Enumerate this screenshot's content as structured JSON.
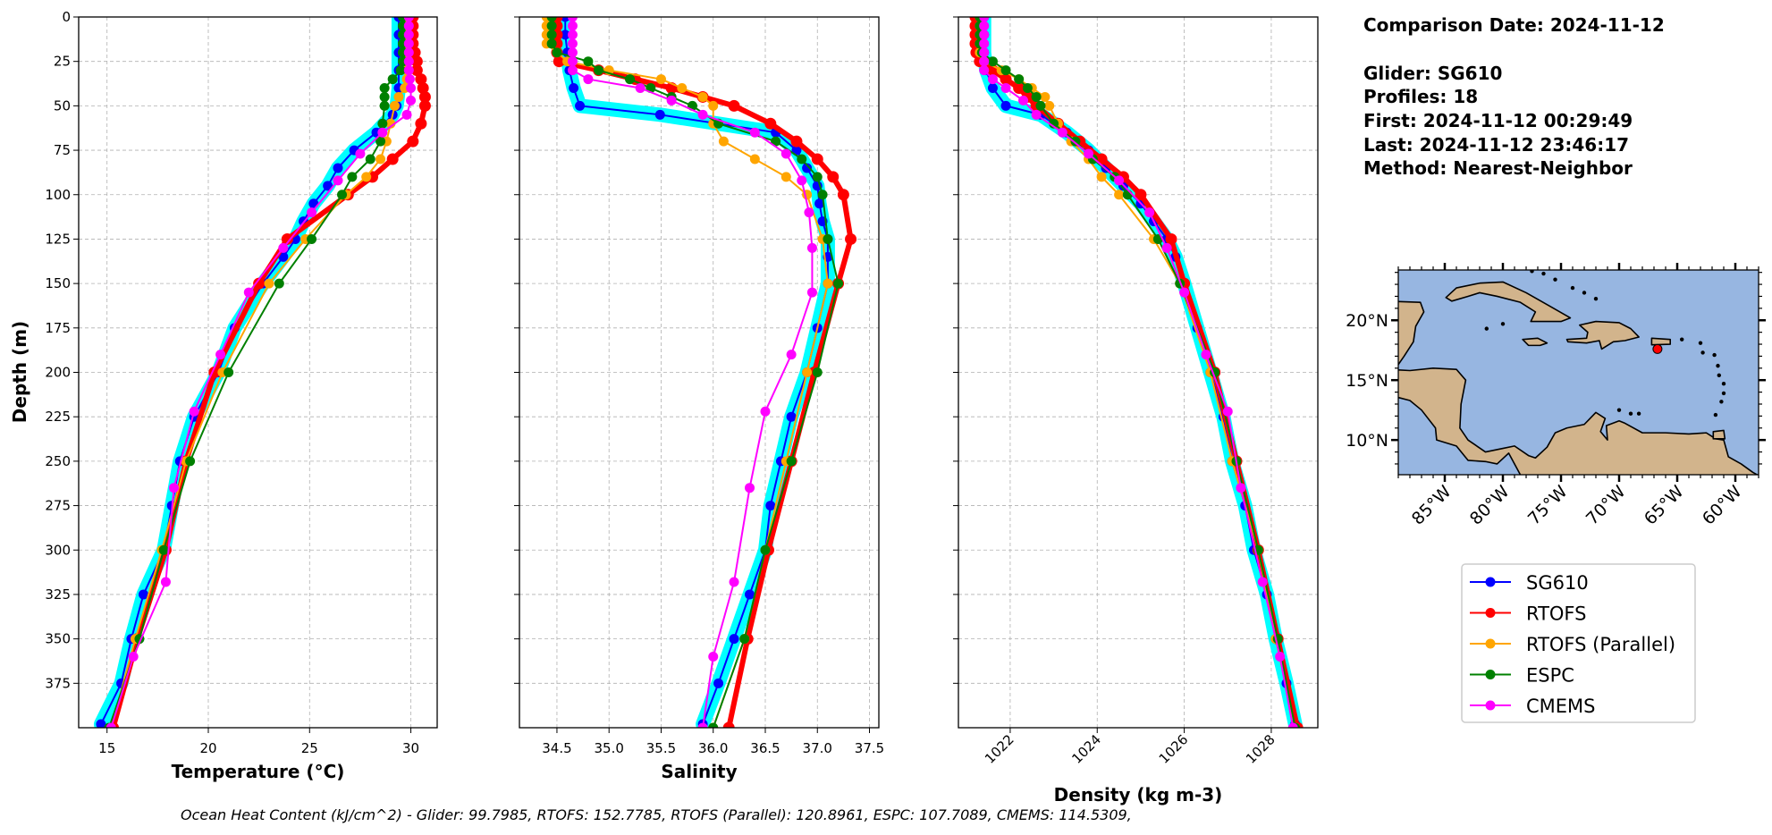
{
  "info_panel": {
    "comparison_date": "Comparison Date: 2024-11-12",
    "glider": "Glider: SG610",
    "profiles": "Profiles: 18",
    "first": "First: 2024-11-12 00:29:49",
    "last": "Last: 2024-11-12 23:46:17",
    "method": "Method: Nearest-Neighbor"
  },
  "caption": "Ocean Heat Content (kJ/cm^2) - Glider: 99.7985,  RTOFS: 152.7785,  RTOFS (Parallel): 120.8961,  ESPC: 107.7089,  CMEMS: 114.5309,",
  "glider_profiles_color": "#00ffff",
  "chart_data": {
    "type": "line",
    "ylabel": "Depth (m)",
    "ylim": [
      400,
      0
    ],
    "ytick_labels": [
      "0",
      "25",
      "50",
      "75",
      "100",
      "125",
      "150",
      "175",
      "200",
      "225",
      "250",
      "275",
      "300",
      "325",
      "350",
      "375"
    ],
    "grid": true,
    "legend_placement": "right",
    "panels": [
      {
        "variable": "temperature",
        "xlabel": "Temperature (°C)",
        "xlim": [
          13.6,
          31.3
        ],
        "xtick_labels": [
          "15",
          "20",
          "25",
          "30"
        ],
        "xtick_rotation": 0
      },
      {
        "variable": "salinity",
        "xlabel": "Salinity",
        "xlim": [
          34.14,
          37.59
        ],
        "xtick_labels": [
          "34.5",
          "35.0",
          "35.5",
          "36.0",
          "36.5",
          "37.0",
          "37.5"
        ],
        "xtick_rotation": 0
      },
      {
        "variable": "density",
        "xlabel": "Density (kg m-3)",
        "xlim": [
          1020.81,
          1029.07
        ],
        "xtick_labels": [
          "1022",
          "1024",
          "1026",
          "1028"
        ],
        "xtick_rotation": 45
      }
    ],
    "series": [
      {
        "name": "SG610",
        "color": "#0000ff",
        "depth": [
          0,
          10,
          20,
          30,
          40,
          50,
          55,
          65,
          75,
          85,
          95,
          105,
          115,
          125,
          135,
          150,
          175,
          200,
          225,
          250,
          275,
          300,
          325,
          350,
          375,
          398
        ],
        "temperature": [
          29.4,
          29.4,
          29.4,
          29.4,
          29.4,
          29.3,
          29.1,
          28.3,
          27.2,
          26.4,
          25.9,
          25.2,
          24.7,
          24.3,
          23.7,
          22.7,
          21.3,
          20.5,
          19.3,
          18.6,
          18.2,
          17.8,
          16.8,
          16.2,
          15.7,
          14.7
        ],
        "salinity": [
          34.58,
          34.58,
          34.6,
          34.62,
          34.66,
          34.72,
          35.49,
          36.6,
          36.8,
          36.9,
          37.0,
          37.02,
          37.05,
          37.1,
          37.1,
          37.1,
          37.0,
          36.9,
          36.75,
          36.65,
          36.55,
          36.5,
          36.35,
          36.2,
          36.05,
          35.9
        ],
        "density": [
          1021.4,
          1021.4,
          1021.4,
          1021.45,
          1021.6,
          1021.9,
          1022.7,
          1023.3,
          1023.8,
          1024.2,
          1024.6,
          1025.0,
          1025.3,
          1025.6,
          1025.8,
          1026.0,
          1026.3,
          1026.6,
          1026.9,
          1027.1,
          1027.4,
          1027.6,
          1027.9,
          1028.1,
          1028.35,
          1028.55
        ]
      },
      {
        "name": "RTOFS",
        "color": "#ff0000",
        "depth": [
          0,
          5,
          10,
          15,
          20,
          25,
          30,
          35,
          40,
          45,
          50,
          60,
          70,
          80,
          90,
          100,
          125,
          150,
          200,
          250,
          300,
          350,
          400
        ],
        "temperature": [
          30.1,
          30.1,
          30.1,
          30.1,
          30.2,
          30.3,
          30.3,
          30.5,
          30.6,
          30.7,
          30.7,
          30.5,
          30.1,
          29.1,
          28.1,
          26.9,
          23.9,
          22.5,
          20.3,
          18.9,
          17.9,
          16.5,
          15.3
        ],
        "salinity": [
          34.5,
          34.5,
          34.5,
          34.5,
          34.5,
          34.52,
          34.9,
          35.25,
          35.6,
          35.9,
          36.2,
          36.55,
          36.8,
          37.0,
          37.15,
          37.25,
          37.32,
          37.2,
          36.97,
          36.75,
          36.53,
          36.33,
          36.15
        ],
        "density": [
          1021.2,
          1021.2,
          1021.2,
          1021.2,
          1021.22,
          1021.3,
          1021.6,
          1021.9,
          1022.2,
          1022.4,
          1022.6,
          1023.1,
          1023.6,
          1024.1,
          1024.6,
          1025.0,
          1025.7,
          1026.0,
          1026.7,
          1027.2,
          1027.7,
          1028.15,
          1028.6
        ]
      },
      {
        "name": "RTOFS (Parallel)",
        "color": "#ffa500",
        "depth": [
          0,
          5,
          10,
          15,
          20,
          25,
          30,
          35,
          40,
          45,
          50,
          60,
          70,
          80,
          90,
          100,
          125,
          150,
          200,
          250,
          300,
          350,
          400
        ],
        "temperature": [
          29.8,
          29.8,
          29.8,
          29.8,
          29.8,
          29.8,
          29.8,
          29.8,
          29.7,
          29.4,
          29.2,
          29.0,
          28.8,
          28.5,
          27.8,
          26.8,
          24.8,
          23.0,
          20.7,
          18.9,
          17.7,
          16.4,
          15.2
        ],
        "salinity": [
          34.4,
          34.4,
          34.4,
          34.4,
          34.5,
          34.6,
          35.0,
          35.5,
          35.7,
          35.9,
          36.0,
          36.0,
          36.1,
          36.4,
          36.7,
          36.9,
          37.05,
          37.1,
          36.9,
          36.7,
          36.5,
          36.3,
          36.0
        ],
        "density": [
          1021.3,
          1021.3,
          1021.3,
          1021.3,
          1021.3,
          1021.4,
          1021.8,
          1022.2,
          1022.5,
          1022.8,
          1022.9,
          1023.1,
          1023.4,
          1023.8,
          1024.1,
          1024.5,
          1025.3,
          1025.9,
          1026.6,
          1027.1,
          1027.7,
          1028.1,
          1028.55
        ]
      },
      {
        "name": "ESPC",
        "color": "#008000",
        "depth": [
          0,
          5,
          10,
          15,
          20,
          25,
          30,
          35,
          40,
          45,
          50,
          60,
          70,
          80,
          90,
          100,
          125,
          150,
          200,
          250,
          300,
          350,
          400
        ],
        "temperature": [
          29.6,
          29.6,
          29.6,
          29.6,
          29.6,
          29.6,
          29.5,
          29.1,
          28.7,
          28.7,
          28.7,
          28.6,
          28.5,
          28.0,
          27.1,
          26.6,
          25.1,
          23.5,
          21.0,
          19.1,
          17.8,
          16.6,
          15.1
        ],
        "salinity": [
          34.45,
          34.45,
          34.45,
          34.45,
          34.5,
          34.8,
          34.9,
          35.2,
          35.4,
          35.6,
          35.8,
          36.05,
          36.6,
          36.85,
          37.0,
          37.05,
          37.1,
          37.2,
          37.0,
          36.75,
          36.5,
          36.3,
          36.0
        ],
        "density": [
          1021.3,
          1021.3,
          1021.3,
          1021.3,
          1021.35,
          1021.6,
          1021.9,
          1022.2,
          1022.4,
          1022.6,
          1022.7,
          1023.0,
          1023.5,
          1023.9,
          1024.4,
          1024.7,
          1025.4,
          1025.9,
          1026.7,
          1027.2,
          1027.7,
          1028.15,
          1028.55
        ]
      },
      {
        "name": "CMEMS",
        "color": "#ff00ff",
        "depth": [
          0,
          5,
          10,
          15,
          20,
          25,
          30,
          35,
          40,
          47,
          55,
          65,
          77,
          92,
          110,
          130,
          155,
          190,
          222,
          265,
          318,
          360,
          400
        ],
        "temperature": [
          29.9,
          29.9,
          29.9,
          29.9,
          29.9,
          29.9,
          29.9,
          29.95,
          30.0,
          30.0,
          29.8,
          28.6,
          27.5,
          26.4,
          25.1,
          23.7,
          22.0,
          20.6,
          19.3,
          18.3,
          17.9,
          16.3,
          15.2
        ],
        "salinity": [
          34.65,
          34.65,
          34.65,
          34.65,
          34.65,
          34.65,
          34.65,
          34.8,
          35.3,
          35.6,
          35.9,
          36.4,
          36.7,
          36.85,
          36.92,
          36.95,
          36.95,
          36.75,
          36.5,
          36.35,
          36.2,
          36.0,
          35.9
        ],
        "density": [
          1021.4,
          1021.4,
          1021.4,
          1021.4,
          1021.4,
          1021.4,
          1021.4,
          1021.6,
          1021.9,
          1022.3,
          1022.6,
          1023.2,
          1023.8,
          1024.5,
          1025.2,
          1025.6,
          1026.0,
          1026.5,
          1027.0,
          1027.3,
          1027.8,
          1028.2,
          1028.5
        ]
      }
    ],
    "map": {
      "extent_lon": [
        -89,
        -58
      ],
      "extent_lat": [
        7.1,
        24.2
      ],
      "lat_tick_labels": [
        "10°N",
        "15°N",
        "20°N"
      ],
      "lat_ticks": [
        10,
        15,
        20
      ],
      "lon_tick_labels": [
        "85°W",
        "80°W",
        "75°W",
        "70°W",
        "65°W",
        "60°W"
      ],
      "lon_ticks": [
        -85,
        -80,
        -75,
        -70,
        -65,
        -60
      ],
      "ocean_color": "#97b6e1",
      "land_color": "#d2b48c",
      "glider_location": {
        "lon": -66.7,
        "lat": 17.6,
        "color": "#ff0000"
      }
    }
  }
}
